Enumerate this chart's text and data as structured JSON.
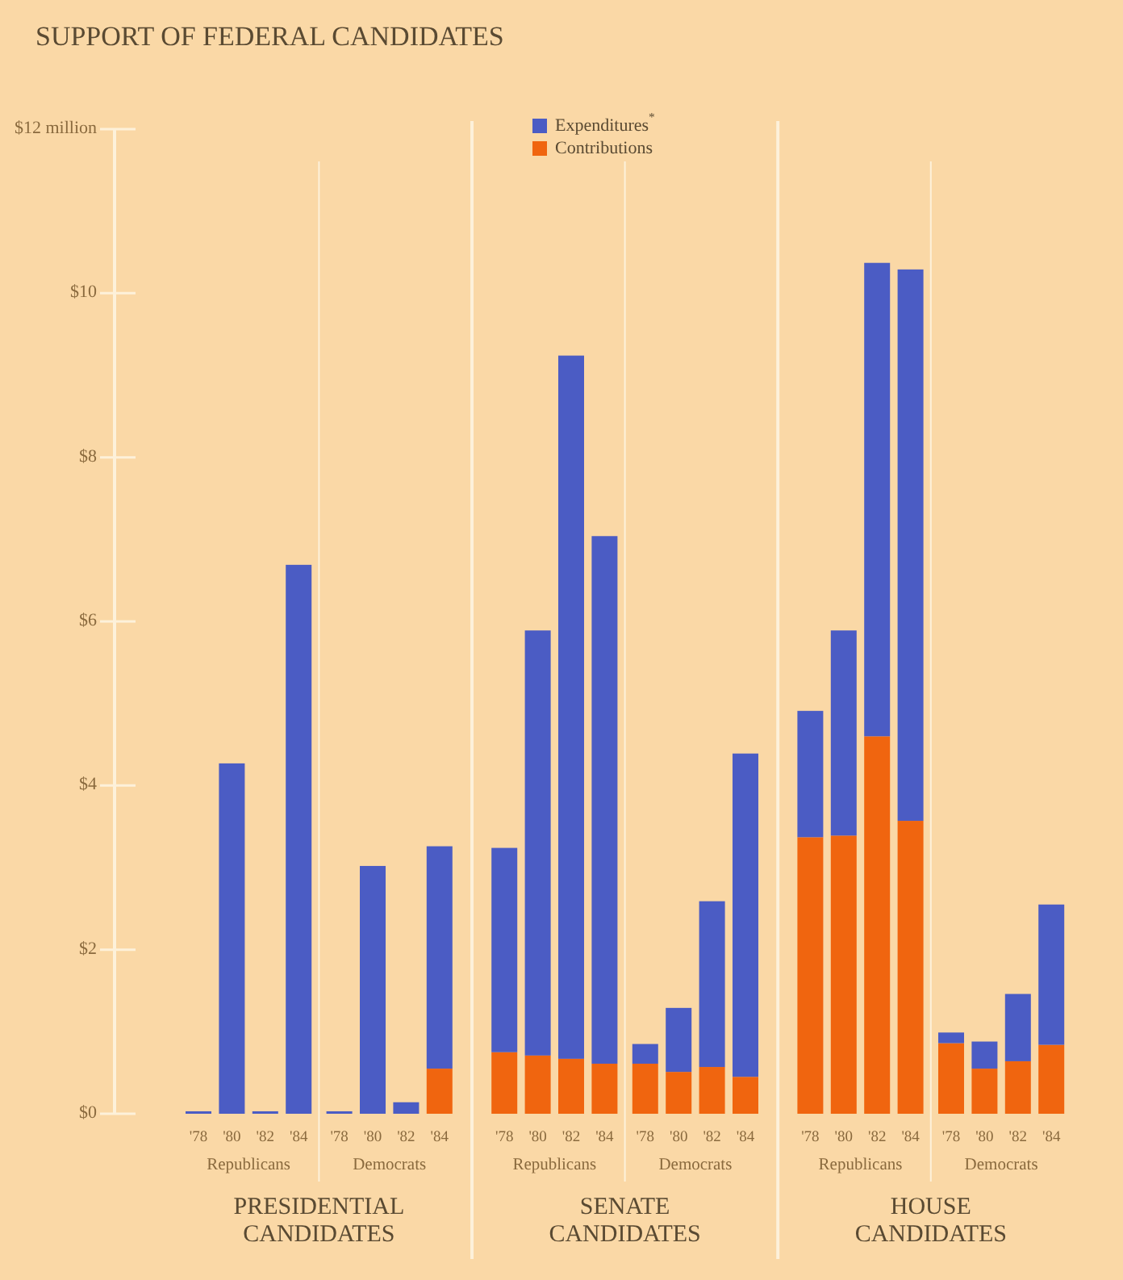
{
  "chart_data": {
    "type": "bar",
    "stacked": true,
    "title": "SUPPORT OF FEDERAL CANDIDATES",
    "categories": [
      "'78",
      "'80",
      "'82",
      "'84",
      "'78",
      "'80",
      "'82",
      "'84",
      "'78",
      "'80",
      "'82",
      "'84",
      "'78",
      "'80",
      "'82",
      "'84",
      "'78",
      "'80",
      "'82",
      "'84",
      "'78",
      "'80",
      "'82",
      "'84"
    ],
    "series": [
      {
        "name": "Contributions",
        "color": "#f0650f",
        "values": [
          0,
          0,
          0,
          0,
          0,
          0,
          0,
          0.55,
          0.75,
          0.71,
          0.67,
          0.61,
          0.61,
          0.51,
          0.57,
          0.45,
          3.37,
          3.39,
          4.6,
          3.57,
          0.86,
          0.55,
          0.64,
          0.84
        ]
      },
      {
        "name": "Expenditures$^{*}$",
        "color": "#4b5cc4",
        "values": [
          0.03,
          4.27,
          0.03,
          6.69,
          0.03,
          3.02,
          0.14,
          2.71,
          2.49,
          5.18,
          8.57,
          6.43,
          0.24,
          0.78,
          2.02,
          3.94,
          1.54,
          2.5,
          5.77,
          6.72,
          0.13,
          0.33,
          0.82,
          1.71
        ]
      }
    ],
    "ylim": [
      0,
      12
    ],
    "yticks": [
      {
        "value": 0,
        "label": "$0"
      },
      {
        "value": 2,
        "label": "$2"
      },
      {
        "value": 4,
        "label": "$4"
      },
      {
        "value": 6,
        "label": "$6"
      },
      {
        "value": 8,
        "label": "$8"
      },
      {
        "value": 10,
        "label": "$10"
      },
      {
        "value": 12,
        "label": "$12 million"
      }
    ],
    "legend": "top",
    "grid": false,
    "annotations": [
      "Republicans",
      "Democrats",
      "Republicans",
      "Democrats",
      "Republicans",
      "Democrats",
      "PRESIDENTIAL CANDIDATES",
      "SENATE CANDIDATES",
      "HOUSE CANDIDATES"
    ]
  }
}
